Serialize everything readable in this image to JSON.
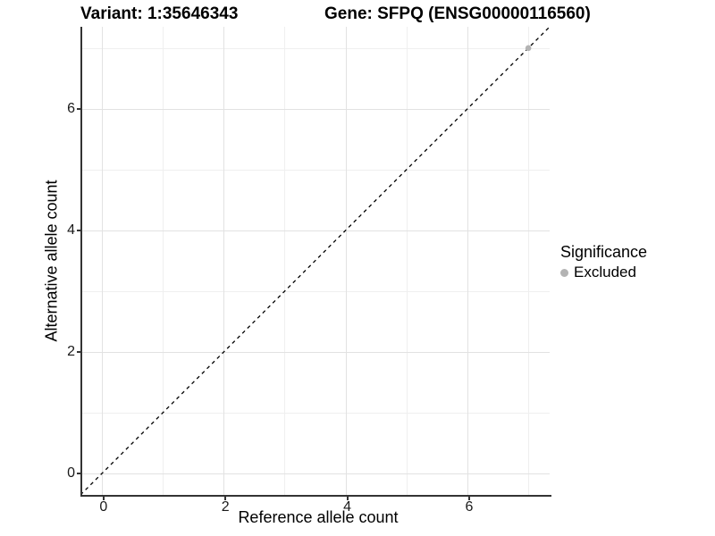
{
  "header": {
    "variant_title": "Variant: 1:35646343",
    "gene_title": "Gene: SFPQ (ENSG00000116560)"
  },
  "chart_data": {
    "type": "scatter",
    "title": "Variant: 1:35646343   Gene: SFPQ (ENSG00000116560)",
    "xlabel": "Reference allele count",
    "ylabel": "Alternative allele count",
    "xlim": [
      -0.35,
      7.35
    ],
    "ylim": [
      -0.35,
      7.35
    ],
    "x_ticks": [
      0,
      2,
      4,
      6
    ],
    "y_ticks": [
      0,
      2,
      4,
      6
    ],
    "x_minor_ticks": [
      1,
      3,
      5,
      7
    ],
    "y_minor_ticks": [
      1,
      3,
      5,
      7
    ],
    "grid": "on",
    "identity_line": {
      "style": "dashed",
      "color": "#000000",
      "from": [
        -0.35,
        -0.35
      ],
      "to": [
        7.35,
        7.35
      ]
    },
    "series": [
      {
        "name": "Excluded",
        "color": "#b3b3b3",
        "points": [
          [
            7,
            7
          ]
        ]
      }
    ],
    "legend": {
      "title": "Significance",
      "position": "right",
      "items": [
        {
          "label": "Excluded",
          "color": "#b3b3b3"
        }
      ]
    }
  },
  "colors": {
    "grid_major": "#e2e2e2",
    "grid_minor": "#efefef",
    "axis_line": "#333333",
    "point": "#b3b3b3",
    "background": "#ffffff"
  }
}
